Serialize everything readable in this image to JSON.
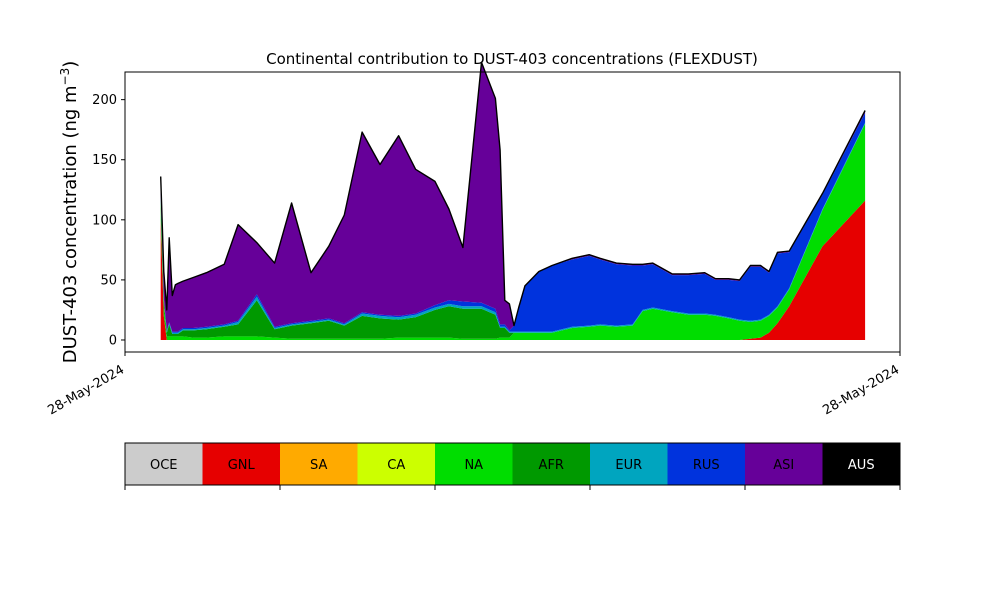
{
  "chart_data": {
    "type": "area",
    "title": "Continental contribution to DUST-403 concentrations (FLEXDUST)",
    "ylabel_main": "DUST-403 concentration (ng m",
    "ylabel_exp": "−3",
    "ylabel_close": ")",
    "xlabel": "",
    "x_tick_labels": [
      "28-May-2024",
      "28-May-2024"
    ],
    "ylim": [
      -10,
      223
    ],
    "y_ticks": [
      0,
      50,
      100,
      150,
      200
    ],
    "grid": false,
    "stack_order": [
      "GNL",
      "NA",
      "AFR",
      "EUR",
      "RUS",
      "ASI",
      "AUS"
    ],
    "x": [
      0.046,
      0.05,
      0.054,
      0.057,
      0.061,
      0.065,
      0.068,
      0.075,
      0.088,
      0.105,
      0.128,
      0.146,
      0.17,
      0.193,
      0.215,
      0.24,
      0.263,
      0.283,
      0.306,
      0.329,
      0.353,
      0.375,
      0.4,
      0.418,
      0.436,
      0.46,
      0.478,
      0.484,
      0.49,
      0.496,
      0.502,
      0.508,
      0.516,
      0.534,
      0.551,
      0.577,
      0.599,
      0.613,
      0.634,
      0.655,
      0.668,
      0.681,
      0.706,
      0.727,
      0.748,
      0.762,
      0.779,
      0.793,
      0.807,
      0.82,
      0.831,
      0.842,
      0.857,
      0.9,
      0.955
    ],
    "series": [
      {
        "name": "GNL",
        "color": "#e60000",
        "values": [
          100,
          20,
          0,
          0,
          0,
          0,
          0,
          0,
          0,
          0,
          0,
          0,
          0,
          0,
          0,
          0,
          0,
          0,
          0,
          0,
          0,
          0,
          0,
          0,
          0,
          0,
          0,
          0,
          0,
          0,
          0,
          0,
          0,
          0,
          0,
          0,
          0,
          0,
          0,
          0,
          0,
          0,
          0,
          0,
          0,
          0,
          0,
          0,
          1,
          2,
          6,
          14,
          28,
          78,
          116
        ]
      },
      {
        "name": "NA",
        "color": "#00dd00",
        "values": [
          8,
          8,
          3,
          3,
          3,
          3,
          3,
          3,
          2,
          2,
          3,
          3,
          3,
          2,
          1,
          1,
          1,
          1,
          1,
          1,
          2,
          2,
          2,
          2,
          1,
          1,
          1,
          2,
          2,
          2,
          6,
          6,
          6,
          6,
          6,
          10,
          11,
          12,
          11,
          12,
          24,
          26,
          23,
          21,
          21,
          20,
          18,
          16,
          14,
          14,
          14,
          13,
          14,
          30,
          64
        ]
      },
      {
        "name": "AFR",
        "color": "#009900",
        "values": [
          10,
          5,
          3,
          10,
          2,
          2,
          2,
          5,
          6,
          7,
          8,
          10,
          30,
          7,
          11,
          13,
          15,
          11,
          19,
          17,
          15,
          17,
          23,
          26,
          25,
          25,
          20,
          8,
          8,
          4,
          0,
          0,
          0,
          0,
          0,
          0,
          0,
          0,
          0,
          0,
          0,
          0,
          0,
          0,
          0,
          0,
          0,
          0,
          0,
          0,
          0,
          0,
          0,
          0,
          0
        ]
      },
      {
        "name": "EUR",
        "color": "#00a5bf",
        "values": [
          2,
          1,
          1,
          1,
          1,
          1,
          1,
          1,
          1,
          1,
          1,
          2,
          3,
          1,
          1,
          1,
          1,
          1,
          2,
          2,
          2,
          2,
          2,
          2,
          2,
          2,
          2,
          1,
          1,
          1,
          1,
          1,
          1,
          1,
          1,
          1,
          1,
          1,
          1,
          1,
          1,
          1,
          1,
          1,
          1,
          1,
          1,
          1,
          1,
          1,
          1,
          1,
          1,
          1,
          1
        ]
      },
      {
        "name": "RUS",
        "color": "#0033dd",
        "values": [
          2,
          1,
          1,
          1,
          1,
          1,
          1,
          1,
          1,
          1,
          1,
          1,
          2,
          1,
          1,
          1,
          1,
          1,
          1,
          1,
          1,
          1,
          2,
          3,
          4,
          3,
          3,
          2,
          2,
          1,
          5,
          20,
          38,
          50,
          55,
          56,
          58,
          54,
          51,
          49,
          37,
          36,
          30,
          32,
          33,
          29,
          31,
          32,
          45,
          44,
          35,
          44,
          30,
          12,
          8
        ]
      },
      {
        "name": "ASI",
        "color": "#660099",
        "values": [
          14,
          22,
          17,
          70,
          30,
          39,
          40,
          39,
          42,
          45,
          50,
          80,
          43,
          53,
          100,
          40,
          60,
          90,
          150,
          125,
          150,
          120,
          103,
          76,
          45,
          200,
          175,
          145,
          20,
          22,
          0,
          0,
          0,
          0,
          0,
          1,
          1,
          1,
          1,
          1,
          1,
          1,
          1,
          1,
          1,
          1,
          1,
          1,
          1,
          1,
          1,
          1,
          1,
          1,
          2
        ]
      },
      {
        "name": "AUS",
        "color": "#000000",
        "values": [
          0,
          0,
          0,
          0,
          0,
          0,
          0,
          0,
          0,
          0,
          0,
          0,
          0,
          0,
          0,
          0,
          0,
          0,
          0,
          0,
          0,
          0,
          0,
          0,
          0,
          0,
          0,
          0,
          0,
          0,
          0,
          0,
          0,
          0,
          0,
          0,
          0,
          0,
          0,
          0,
          0,
          0,
          0,
          0,
          0,
          0,
          0,
          0,
          0,
          0,
          0,
          0,
          0,
          0,
          0
        ]
      }
    ],
    "legend": [
      {
        "label": "OCE",
        "color": "#cccccc"
      },
      {
        "label": "GNL",
        "color": "#e60000"
      },
      {
        "label": "SA",
        "color": "#ffaa00"
      },
      {
        "label": "CA",
        "color": "#ccff00"
      },
      {
        "label": "NA",
        "color": "#00dd00"
      },
      {
        "label": "AFR",
        "color": "#009900"
      },
      {
        "label": "EUR",
        "color": "#00a5bf"
      },
      {
        "label": "RUS",
        "color": "#0033dd"
      },
      {
        "label": "ASI",
        "color": "#660099"
      },
      {
        "label": "AUS",
        "color": "#000000"
      }
    ],
    "legend_position": "below"
  }
}
